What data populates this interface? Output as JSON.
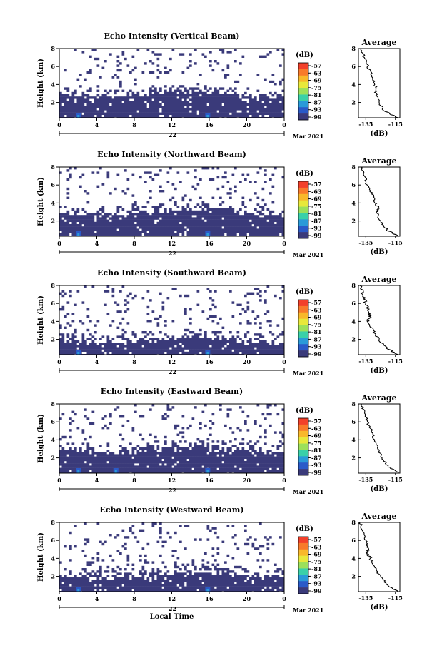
{
  "chart_data": [
    {
      "type": "heatmap",
      "title": "Echo Intensity (Vertical Beam)",
      "xlabel": "",
      "ylabel": "Height (km)",
      "x_ticks": [
        "0",
        "4",
        "8",
        "12",
        "16",
        "20",
        "0"
      ],
      "date_label": "22",
      "month_label": "Mar 2021",
      "y_ticks": [
        "2",
        "4",
        "6",
        "8"
      ],
      "ylim": [
        0.3,
        8
      ],
      "xlim": [
        0,
        24
      ],
      "colorbar": {
        "label": "(dB)",
        "ticks": [
          "-57",
          "-63",
          "-69",
          "-75",
          "-81",
          "-87",
          "-93",
          "-99"
        ]
      },
      "dense_top_km": 3.0,
      "scatter_top_km": 8.0,
      "bright_spots_hour": [
        2.0,
        15.8
      ],
      "average_profile": {
        "title": "Average",
        "xlabel": "(dB)",
        "x_ticks": [
          "-135",
          "-115"
        ],
        "y_ticks": [
          "2",
          "4",
          "6",
          "8"
        ],
        "xlim": [
          -140,
          -112
        ],
        "height_km": [
          8,
          7,
          6,
          5,
          4,
          3,
          2,
          1,
          0.3
        ],
        "db": [
          -138,
          -136,
          -134,
          -131,
          -129,
          -128,
          -126,
          -122,
          -113
        ]
      }
    },
    {
      "type": "heatmap",
      "title": "Echo Intensity (Northward Beam)",
      "xlabel": "",
      "ylabel": "Height (km)",
      "x_ticks": [
        "0",
        "4",
        "8",
        "12",
        "16",
        "20",
        "0"
      ],
      "date_label": "22",
      "month_label": "Mar 2021",
      "y_ticks": [
        "2",
        "4",
        "6",
        "8"
      ],
      "ylim": [
        0.3,
        8
      ],
      "xlim": [
        0,
        24
      ],
      "colorbar": {
        "label": "(dB)",
        "ticks": [
          "-57",
          "-63",
          "-69",
          "-75",
          "-81",
          "-87",
          "-93",
          "-99"
        ]
      },
      "dense_top_km": 3.0,
      "scatter_top_km": 8.0,
      "bright_spots_hour": [
        2.0,
        15.8
      ],
      "average_profile": {
        "title": "Average",
        "xlabel": "(dB)",
        "x_ticks": [
          "-135",
          "-115"
        ],
        "y_ticks": [
          "2",
          "4",
          "6",
          "8"
        ],
        "xlim": [
          -140,
          -112
        ],
        "height_km": [
          8,
          7,
          6,
          5,
          4,
          3.4,
          3,
          2,
          1,
          0.3
        ],
        "db": [
          -138,
          -136,
          -134,
          -131,
          -129,
          -126,
          -128,
          -125,
          -121,
          -113
        ]
      }
    },
    {
      "type": "heatmap",
      "title": "Echo Intensity (Southward Beam)",
      "xlabel": "",
      "ylabel": "Height (km)",
      "x_ticks": [
        "0",
        "4",
        "8",
        "12",
        "16",
        "20",
        "0"
      ],
      "date_label": "22",
      "month_label": "Mar 2021",
      "y_ticks": [
        "2",
        "4",
        "6",
        "8"
      ],
      "ylim": [
        0.3,
        8
      ],
      "xlim": [
        0,
        24
      ],
      "colorbar": {
        "label": "(dB)",
        "ticks": [
          "-57",
          "-63",
          "-69",
          "-75",
          "-81",
          "-87",
          "-93",
          "-99"
        ]
      },
      "dense_top_km": 2.0,
      "scatter_top_km": 8.0,
      "bright_spots_hour": [
        2.0,
        15.8
      ],
      "average_profile": {
        "title": "Average",
        "xlabel": "(dB)",
        "x_ticks": [
          "-135",
          "-115"
        ],
        "y_ticks": [
          "2",
          "4",
          "6",
          "8"
        ],
        "xlim": [
          -140,
          -112
        ],
        "height_km": [
          8,
          7,
          6,
          5,
          4.5,
          4,
          3,
          2,
          1,
          0.3
        ],
        "db": [
          -139,
          -137,
          -135,
          -133,
          -132,
          -134,
          -130,
          -126,
          -121,
          -113
        ]
      }
    },
    {
      "type": "heatmap",
      "title": "Echo Intensity (Eastward Beam)",
      "xlabel": "",
      "ylabel": "Height (km)",
      "x_ticks": [
        "0",
        "4",
        "8",
        "12",
        "16",
        "20",
        "0"
      ],
      "date_label": "22",
      "month_label": "Mar 2021",
      "y_ticks": [
        "2",
        "4",
        "6",
        "8"
      ],
      "ylim": [
        0.3,
        8
      ],
      "xlim": [
        0,
        24
      ],
      "colorbar": {
        "label": "(dB)",
        "ticks": [
          "-57",
          "-63",
          "-69",
          "-75",
          "-81",
          "-87",
          "-93",
          "-99"
        ]
      },
      "dense_top_km": 3.0,
      "scatter_top_km": 8.0,
      "bright_spots_hour": [
        2.0,
        6.0,
        15.8
      ],
      "average_profile": {
        "title": "Average",
        "xlabel": "(dB)",
        "x_ticks": [
          "-135",
          "-115"
        ],
        "y_ticks": [
          "2",
          "4",
          "6",
          "8"
        ],
        "xlim": [
          -140,
          -112
        ],
        "height_km": [
          8,
          7,
          6,
          5,
          4,
          3,
          2,
          1,
          0.3
        ],
        "db": [
          -138,
          -136,
          -134,
          -131,
          -129,
          -127,
          -124,
          -120,
          -113
        ]
      }
    },
    {
      "type": "heatmap",
      "title": "Echo Intensity (Westward Beam)",
      "xlabel": "Local Time",
      "ylabel": "Height (km)",
      "x_ticks": [
        "0",
        "4",
        "8",
        "12",
        "16",
        "20",
        "0"
      ],
      "date_label": "22",
      "month_label": "Mar 2021",
      "y_ticks": [
        "2",
        "4",
        "6",
        "8"
      ],
      "ylim": [
        0.3,
        8
      ],
      "xlim": [
        0,
        24
      ],
      "colorbar": {
        "label": "(dB)",
        "ticks": [
          "-57",
          "-63",
          "-69",
          "-75",
          "-81",
          "-87",
          "-93",
          "-99"
        ]
      },
      "dense_top_km": 2.2,
      "scatter_top_km": 8.0,
      "bright_spots_hour": [
        2.0,
        15.8
      ],
      "average_profile": {
        "title": "Average",
        "xlabel": "(dB)",
        "x_ticks": [
          "-135",
          "-115"
        ],
        "y_ticks": [
          "2",
          "4",
          "6",
          "8"
        ],
        "xlim": [
          -140,
          -112
        ],
        "height_km": [
          8,
          7,
          6,
          5,
          4.6,
          4,
          3,
          2,
          1,
          0.3
        ],
        "db": [
          -139,
          -137,
          -135,
          -133,
          -134,
          -132,
          -129,
          -125,
          -120,
          -113
        ]
      }
    }
  ],
  "colors": {
    "background": "#ffffff",
    "low_echo": "#3a3a7a",
    "scale": [
      "#f2402a",
      "#f87a2a",
      "#f8b82a",
      "#e8e83a",
      "#9ce05a",
      "#3ad0a8",
      "#2a9ad8",
      "#2a5ac8",
      "#3a3a7a"
    ]
  }
}
